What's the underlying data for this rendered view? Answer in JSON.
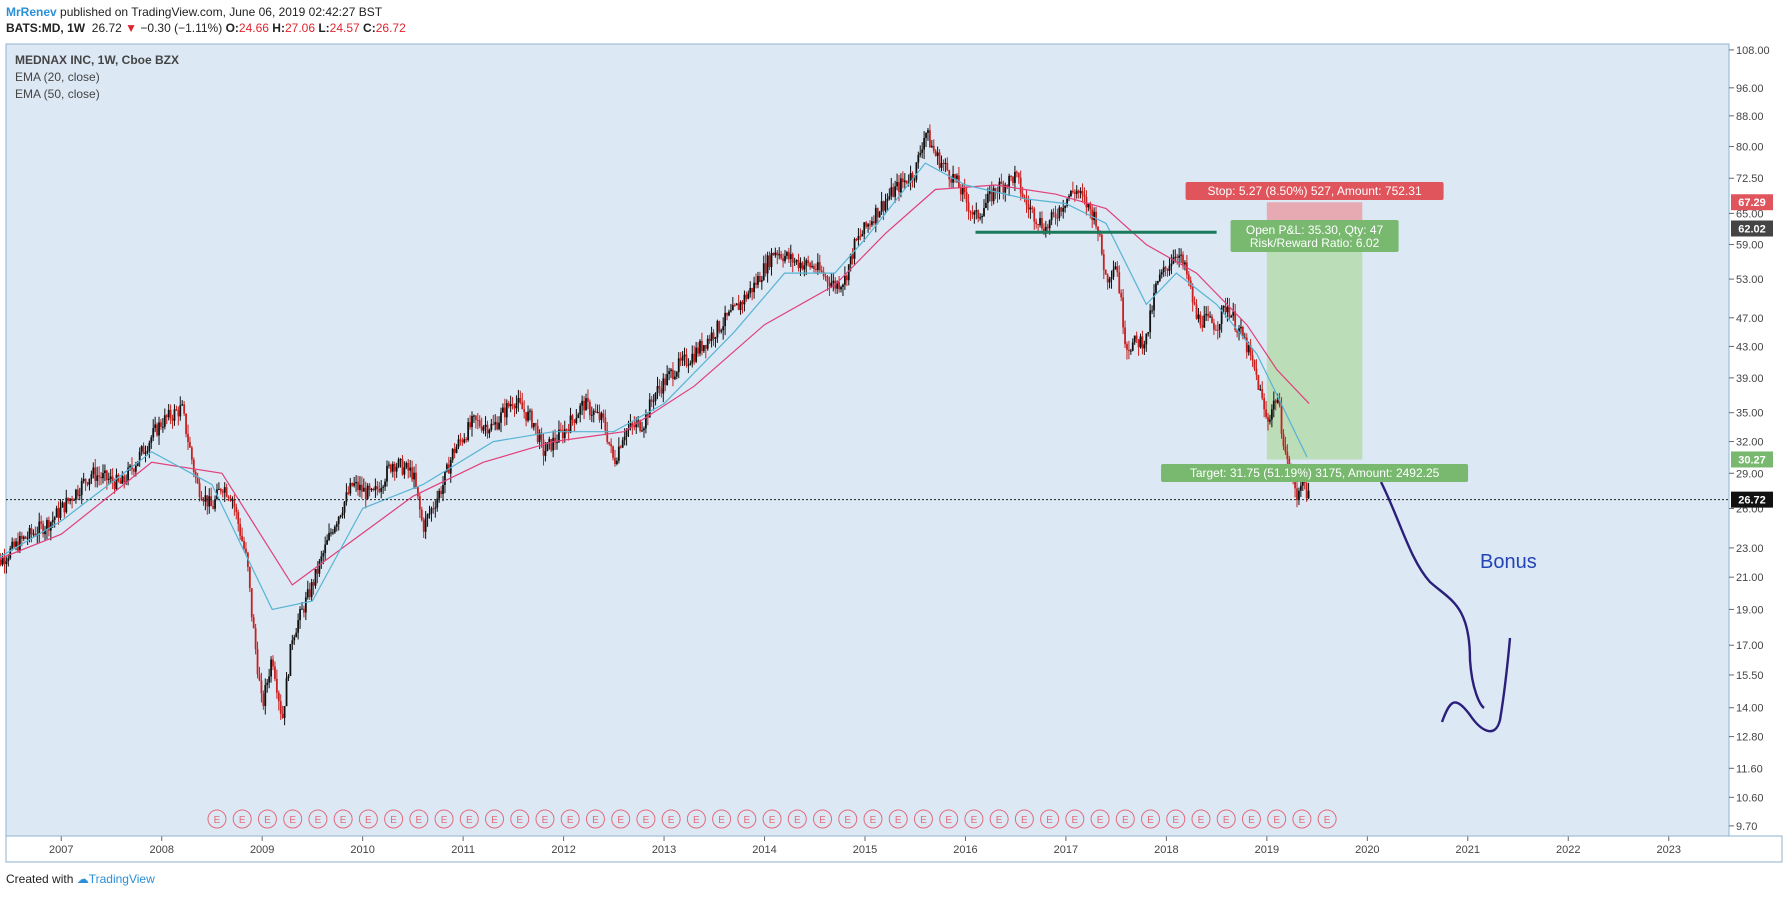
{
  "header": {
    "author": "MrRenev",
    "published_text": "published on TradingView.com, June 06, 2019 02:42:27 BST",
    "symbol": "BATS:MD, 1W",
    "last": "26.72",
    "change": "−0.30 (−1.11%)",
    "o_label": "O:",
    "o_value": "24.66",
    "h_label": "H:",
    "h_value": "27.06",
    "l_label": "L:",
    "l_value": "24.57",
    "c_label": "C:",
    "c_value": "26.72"
  },
  "legend": {
    "title": "MEDNAX INC, 1W, Cboe BZX",
    "ema20": "EMA (20, close)",
    "ema50": "EMA (50, close)"
  },
  "position_tool": {
    "stop_label": "Stop: 5.27 (8.50%) 527, Amount: 752.31",
    "pnl_label": "Open P&L: 35.30, Qty: 47",
    "rr_label": "Risk/Reward Ratio: 6.02",
    "target_label": "Target: 31.75 (51.19%) 3175, Amount: 2492.25"
  },
  "annotation": {
    "bonus": "Bonus"
  },
  "footer": {
    "created_with": "Created with",
    "brand": "TradingView"
  },
  "colors": {
    "bg": "#dce8f4",
    "up": "#111111",
    "down": "#c7201f",
    "ema20": "#56b4d3",
    "ema50": "#e0407a",
    "support": "#1b7a5a",
    "stop_zone": "#e8a7ae",
    "target_zone": "#b8dcb4",
    "drawing": "#2a1f7a"
  },
  "chart_data": {
    "type": "candlestick",
    "symbol": "BATS:MD",
    "interval": "1W",
    "y_scale": "log",
    "y_ticks": [
      108,
      96,
      88,
      80,
      72.5,
      65,
      59,
      53,
      47,
      43,
      39,
      35,
      32,
      29,
      26,
      23,
      21,
      19,
      17,
      15.5,
      14,
      12.8,
      11.6,
      10.6,
      9.7
    ],
    "y_tick_labels": [
      "108.00",
      "96.00",
      "88.00",
      "80.00",
      "72.50",
      "65.00",
      "59.00",
      "53.00",
      "47.00",
      "43.00",
      "39.00",
      "35.00",
      "32.00",
      "29.00",
      "26.00",
      "23.00",
      "21.00",
      "19.00",
      "17.00",
      "15.50",
      "14.00",
      "12.80",
      "11.60",
      "10.60",
      "9.70"
    ],
    "x_ticks": [
      "2007",
      "2008",
      "2009",
      "2010",
      "2011",
      "2012",
      "2013",
      "2014",
      "2015",
      "2016",
      "2017",
      "2018",
      "2019",
      "2020",
      "2021",
      "2022",
      "2023"
    ],
    "ylim": [
      9.4,
      110
    ],
    "price_path": [
      [
        2006.3,
        21.5
      ],
      [
        2006.6,
        23.5
      ],
      [
        2006.9,
        25
      ],
      [
        2007.3,
        29
      ],
      [
        2007.6,
        28
      ],
      [
        2007.9,
        32.5
      ],
      [
        2008.0,
        34
      ],
      [
        2008.2,
        35.5
      ],
      [
        2008.35,
        28
      ],
      [
        2008.5,
        26
      ],
      [
        2008.6,
        28
      ],
      [
        2008.7,
        27
      ],
      [
        2008.85,
        22
      ],
      [
        2008.9,
        18.5
      ],
      [
        2009.0,
        14
      ],
      [
        2009.1,
        16.5
      ],
      [
        2009.2,
        13.5
      ],
      [
        2009.3,
        17.5
      ],
      [
        2009.5,
        20.5
      ],
      [
        2009.7,
        24.5
      ],
      [
        2009.9,
        28
      ],
      [
        2010.1,
        27
      ],
      [
        2010.3,
        30
      ],
      [
        2010.5,
        29
      ],
      [
        2010.6,
        24.5
      ],
      [
        2010.8,
        28
      ],
      [
        2010.9,
        31
      ],
      [
        2011.1,
        34
      ],
      [
        2011.3,
        33.5
      ],
      [
        2011.5,
        36.5
      ],
      [
        2011.7,
        34
      ],
      [
        2011.8,
        31
      ],
      [
        2012.0,
        33
      ],
      [
        2012.2,
        36
      ],
      [
        2012.4,
        34
      ],
      [
        2012.5,
        30
      ],
      [
        2012.6,
        33
      ],
      [
        2012.8,
        34
      ],
      [
        2012.9,
        37
      ],
      [
        2013.1,
        40
      ],
      [
        2013.3,
        42
      ],
      [
        2013.5,
        45
      ],
      [
        2013.7,
        48
      ],
      [
        2013.9,
        52
      ],
      [
        2014.1,
        58
      ],
      [
        2014.3,
        56
      ],
      [
        2014.5,
        55
      ],
      [
        2014.7,
        52
      ],
      [
        2014.8,
        53
      ],
      [
        2014.9,
        59
      ],
      [
        2015.1,
        65
      ],
      [
        2015.3,
        70
      ],
      [
        2015.5,
        74
      ],
      [
        2015.6,
        84
      ],
      [
        2015.7,
        78
      ],
      [
        2015.9,
        72
      ],
      [
        2016.1,
        64
      ],
      [
        2016.3,
        70
      ],
      [
        2016.5,
        73
      ],
      [
        2016.6,
        67
      ],
      [
        2016.8,
        62
      ],
      [
        2017.0,
        68
      ],
      [
        2017.1,
        70
      ],
      [
        2017.3,
        64
      ],
      [
        2017.4,
        53
      ],
      [
        2017.5,
        56
      ],
      [
        2017.6,
        43
      ],
      [
        2017.8,
        44
      ],
      [
        2017.9,
        52
      ],
      [
        2018.1,
        58
      ],
      [
        2018.2,
        54
      ],
      [
        2018.3,
        47
      ],
      [
        2018.5,
        46
      ],
      [
        2018.6,
        49
      ],
      [
        2018.8,
        43
      ],
      [
        2018.9,
        39
      ],
      [
        2019.0,
        34
      ],
      [
        2019.1,
        37
      ],
      [
        2019.2,
        30
      ],
      [
        2019.3,
        27
      ],
      [
        2019.35,
        29
      ],
      [
        2019.42,
        26.72
      ]
    ],
    "ema20_path": [
      [
        2006.3,
        22
      ],
      [
        2007.0,
        25
      ],
      [
        2007.9,
        31
      ],
      [
        2008.5,
        28
      ],
      [
        2009.1,
        19
      ],
      [
        2009.5,
        19.5
      ],
      [
        2010.0,
        26
      ],
      [
        2010.6,
        28
      ],
      [
        2011.3,
        32
      ],
      [
        2011.9,
        33
      ],
      [
        2012.5,
        33
      ],
      [
        2013.0,
        36
      ],
      [
        2013.7,
        45
      ],
      [
        2014.2,
        54
      ],
      [
        2014.7,
        54
      ],
      [
        2015.0,
        60
      ],
      [
        2015.6,
        76
      ],
      [
        2016.0,
        71
      ],
      [
        2016.6,
        68
      ],
      [
        2017.0,
        67
      ],
      [
        2017.4,
        63
      ],
      [
        2017.8,
        49
      ],
      [
        2018.1,
        54
      ],
      [
        2018.5,
        49
      ],
      [
        2018.9,
        42
      ],
      [
        2019.1,
        37
      ],
      [
        2019.4,
        30.5
      ]
    ],
    "ema50_path": [
      [
        2006.3,
        22
      ],
      [
        2007.0,
        24
      ],
      [
        2007.9,
        30
      ],
      [
        2008.6,
        29
      ],
      [
        2009.3,
        20.5
      ],
      [
        2009.8,
        23
      ],
      [
        2010.5,
        27
      ],
      [
        2011.2,
        30
      ],
      [
        2011.9,
        32
      ],
      [
        2012.6,
        33
      ],
      [
        2013.3,
        38
      ],
      [
        2014.0,
        46
      ],
      [
        2014.7,
        52
      ],
      [
        2015.2,
        61
      ],
      [
        2015.7,
        70
      ],
      [
        2016.3,
        71
      ],
      [
        2016.9,
        69
      ],
      [
        2017.4,
        66
      ],
      [
        2017.8,
        59
      ],
      [
        2018.3,
        54
      ],
      [
        2018.8,
        46
      ],
      [
        2019.1,
        40
      ],
      [
        2019.42,
        36
      ]
    ],
    "price_labels": {
      "stop": "67.29",
      "entry": "62.02",
      "target": "30.27",
      "last": "26.72"
    },
    "support_line": {
      "from": [
        2016.1,
        61.3
      ],
      "to": [
        2018.5,
        61.3
      ]
    },
    "stop_zone": {
      "x": [
        2019.0,
        2019.95
      ],
      "y": [
        62.02,
        67.29
      ]
    },
    "target_zone": {
      "x": [
        2019.0,
        2019.95
      ],
      "y": [
        30.27,
        62.02
      ]
    },
    "earnings_marker": "E",
    "earnings_range": [
      2008.55,
      2019.6
    ],
    "earnings_count": 45
  }
}
